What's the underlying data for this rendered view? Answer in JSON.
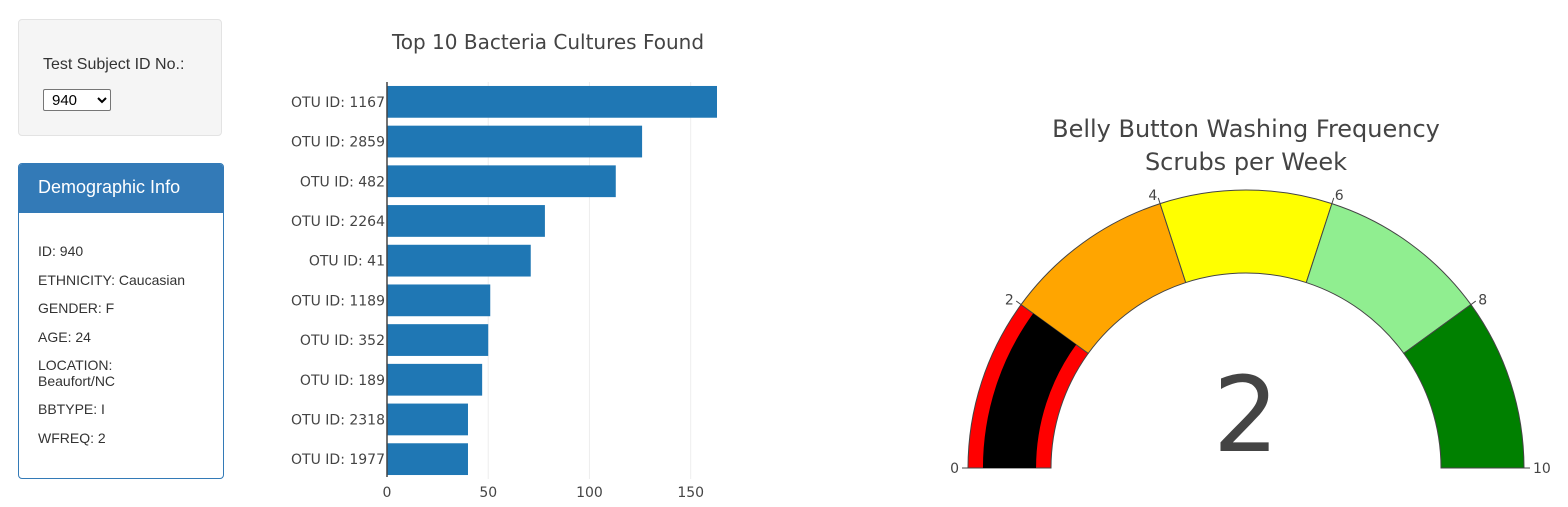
{
  "selector": {
    "label": "Test Subject ID No.:",
    "selected": "940"
  },
  "demographics": {
    "title": "Demographic Info",
    "lines": [
      "ID: 940",
      "ETHNICITY: Caucasian",
      "GENDER: F",
      "AGE: 24",
      "LOCATION: Beaufort/NC",
      "BBTYPE: I",
      "WFREQ: 2"
    ]
  },
  "chart_data": [
    {
      "type": "bar",
      "orientation": "horizontal",
      "title": "Top 10 Bacteria Cultures Found",
      "categories": [
        "OTU ID: 1167",
        "OTU ID: 2859",
        "OTU ID: 482",
        "OTU ID: 2264",
        "OTU ID: 41",
        "OTU ID: 1189",
        "OTU ID: 352",
        "OTU ID: 189",
        "OTU ID: 2318",
        "OTU ID: 1977"
      ],
      "values": [
        163,
        126,
        113,
        78,
        71,
        51,
        50,
        47,
        40,
        40
      ],
      "xlim": [
        0,
        163
      ],
      "xticks": [
        0,
        50,
        100,
        150
      ],
      "grid": true,
      "color": "#1f77b4"
    },
    {
      "type": "gauge",
      "title": "Belly Button Washing Frequency",
      "subtitle": "Scrubs per Week",
      "value": 2,
      "range": [
        0,
        10
      ],
      "ticks": [
        0,
        2,
        4,
        6,
        8,
        10
      ],
      "steps": [
        {
          "range": [
            0,
            2
          ],
          "color": "#ff0000"
        },
        {
          "range": [
            2,
            4
          ],
          "color": "#ffa500"
        },
        {
          "range": [
            4,
            6
          ],
          "color": "#ffff00"
        },
        {
          "range": [
            6,
            8
          ],
          "color": "#90ee90"
        },
        {
          "range": [
            8,
            10
          ],
          "color": "#008000"
        }
      ],
      "bar_color": "#000000",
      "number_color": "#444444"
    }
  ]
}
